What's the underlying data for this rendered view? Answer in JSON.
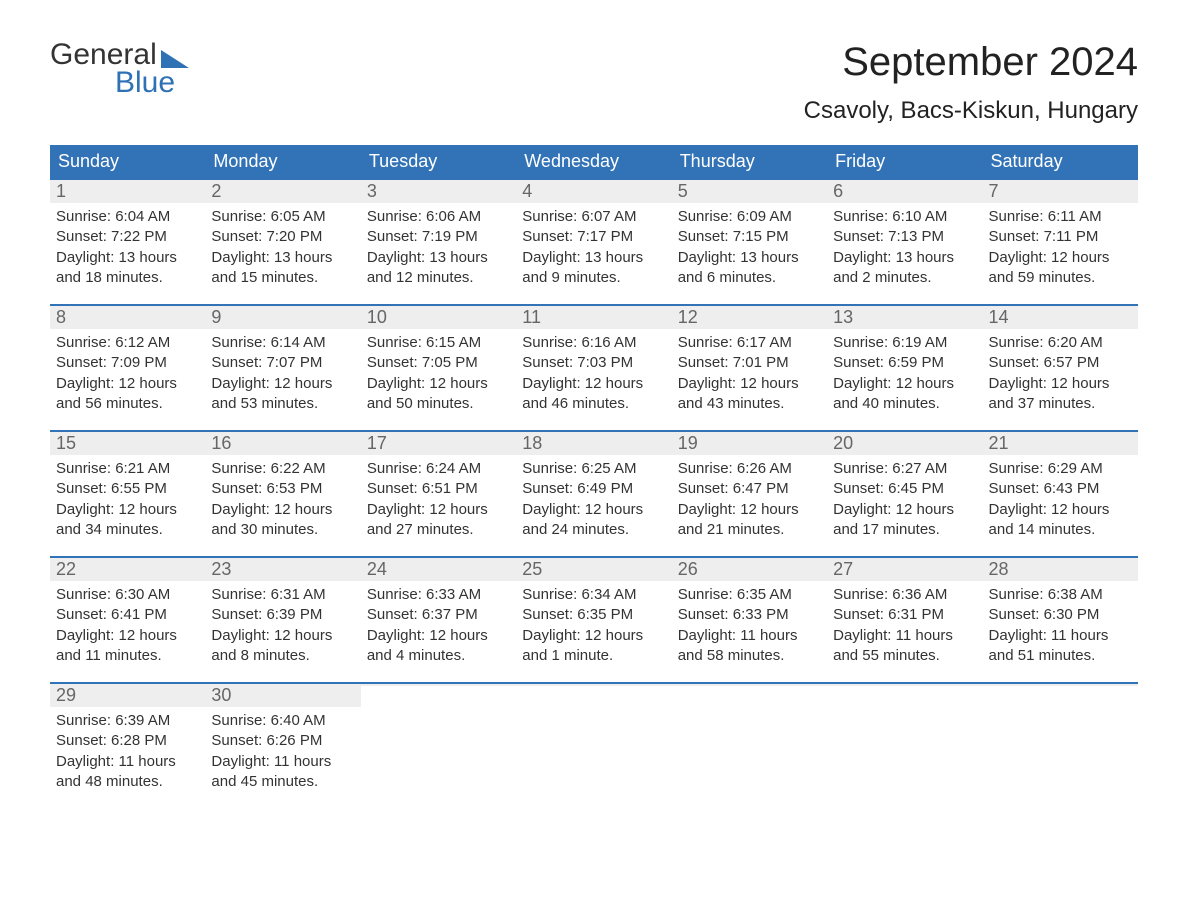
{
  "logo": {
    "text_top": "General",
    "text_bottom": "Blue"
  },
  "title": "September 2024",
  "location": "Csavoly, Bacs-Kiskun, Hungary",
  "colors": {
    "header_bg": "#3273b7",
    "header_text": "#ffffff",
    "daynum_bg": "#eeeeee",
    "daynum_text": "#666666",
    "body_text": "#333333",
    "page_bg": "#ffffff",
    "accent": "#2f71b5"
  },
  "typography": {
    "title_fontsize": 40,
    "location_fontsize": 24,
    "weekday_fontsize": 18,
    "daynum_fontsize": 18,
    "body_fontsize": 15
  },
  "weekdays": [
    "Sunday",
    "Monday",
    "Tuesday",
    "Wednesday",
    "Thursday",
    "Friday",
    "Saturday"
  ],
  "weeks": [
    [
      {
        "num": "1",
        "sunrise": "Sunrise: 6:04 AM",
        "sunset": "Sunset: 7:22 PM",
        "daylight": "Daylight: 13 hours and 18 minutes."
      },
      {
        "num": "2",
        "sunrise": "Sunrise: 6:05 AM",
        "sunset": "Sunset: 7:20 PM",
        "daylight": "Daylight: 13 hours and 15 minutes."
      },
      {
        "num": "3",
        "sunrise": "Sunrise: 6:06 AM",
        "sunset": "Sunset: 7:19 PM",
        "daylight": "Daylight: 13 hours and 12 minutes."
      },
      {
        "num": "4",
        "sunrise": "Sunrise: 6:07 AM",
        "sunset": "Sunset: 7:17 PM",
        "daylight": "Daylight: 13 hours and 9 minutes."
      },
      {
        "num": "5",
        "sunrise": "Sunrise: 6:09 AM",
        "sunset": "Sunset: 7:15 PM",
        "daylight": "Daylight: 13 hours and 6 minutes."
      },
      {
        "num": "6",
        "sunrise": "Sunrise: 6:10 AM",
        "sunset": "Sunset: 7:13 PM",
        "daylight": "Daylight: 13 hours and 2 minutes."
      },
      {
        "num": "7",
        "sunrise": "Sunrise: 6:11 AM",
        "sunset": "Sunset: 7:11 PM",
        "daylight": "Daylight: 12 hours and 59 minutes."
      }
    ],
    [
      {
        "num": "8",
        "sunrise": "Sunrise: 6:12 AM",
        "sunset": "Sunset: 7:09 PM",
        "daylight": "Daylight: 12 hours and 56 minutes."
      },
      {
        "num": "9",
        "sunrise": "Sunrise: 6:14 AM",
        "sunset": "Sunset: 7:07 PM",
        "daylight": "Daylight: 12 hours and 53 minutes."
      },
      {
        "num": "10",
        "sunrise": "Sunrise: 6:15 AM",
        "sunset": "Sunset: 7:05 PM",
        "daylight": "Daylight: 12 hours and 50 minutes."
      },
      {
        "num": "11",
        "sunrise": "Sunrise: 6:16 AM",
        "sunset": "Sunset: 7:03 PM",
        "daylight": "Daylight: 12 hours and 46 minutes."
      },
      {
        "num": "12",
        "sunrise": "Sunrise: 6:17 AM",
        "sunset": "Sunset: 7:01 PM",
        "daylight": "Daylight: 12 hours and 43 minutes."
      },
      {
        "num": "13",
        "sunrise": "Sunrise: 6:19 AM",
        "sunset": "Sunset: 6:59 PM",
        "daylight": "Daylight: 12 hours and 40 minutes."
      },
      {
        "num": "14",
        "sunrise": "Sunrise: 6:20 AM",
        "sunset": "Sunset: 6:57 PM",
        "daylight": "Daylight: 12 hours and 37 minutes."
      }
    ],
    [
      {
        "num": "15",
        "sunrise": "Sunrise: 6:21 AM",
        "sunset": "Sunset: 6:55 PM",
        "daylight": "Daylight: 12 hours and 34 minutes."
      },
      {
        "num": "16",
        "sunrise": "Sunrise: 6:22 AM",
        "sunset": "Sunset: 6:53 PM",
        "daylight": "Daylight: 12 hours and 30 minutes."
      },
      {
        "num": "17",
        "sunrise": "Sunrise: 6:24 AM",
        "sunset": "Sunset: 6:51 PM",
        "daylight": "Daylight: 12 hours and 27 minutes."
      },
      {
        "num": "18",
        "sunrise": "Sunrise: 6:25 AM",
        "sunset": "Sunset: 6:49 PM",
        "daylight": "Daylight: 12 hours and 24 minutes."
      },
      {
        "num": "19",
        "sunrise": "Sunrise: 6:26 AM",
        "sunset": "Sunset: 6:47 PM",
        "daylight": "Daylight: 12 hours and 21 minutes."
      },
      {
        "num": "20",
        "sunrise": "Sunrise: 6:27 AM",
        "sunset": "Sunset: 6:45 PM",
        "daylight": "Daylight: 12 hours and 17 minutes."
      },
      {
        "num": "21",
        "sunrise": "Sunrise: 6:29 AM",
        "sunset": "Sunset: 6:43 PM",
        "daylight": "Daylight: 12 hours and 14 minutes."
      }
    ],
    [
      {
        "num": "22",
        "sunrise": "Sunrise: 6:30 AM",
        "sunset": "Sunset: 6:41 PM",
        "daylight": "Daylight: 12 hours and 11 minutes."
      },
      {
        "num": "23",
        "sunrise": "Sunrise: 6:31 AM",
        "sunset": "Sunset: 6:39 PM",
        "daylight": "Daylight: 12 hours and 8 minutes."
      },
      {
        "num": "24",
        "sunrise": "Sunrise: 6:33 AM",
        "sunset": "Sunset: 6:37 PM",
        "daylight": "Daylight: 12 hours and 4 minutes."
      },
      {
        "num": "25",
        "sunrise": "Sunrise: 6:34 AM",
        "sunset": "Sunset: 6:35 PM",
        "daylight": "Daylight: 12 hours and 1 minute."
      },
      {
        "num": "26",
        "sunrise": "Sunrise: 6:35 AM",
        "sunset": "Sunset: 6:33 PM",
        "daylight": "Daylight: 11 hours and 58 minutes."
      },
      {
        "num": "27",
        "sunrise": "Sunrise: 6:36 AM",
        "sunset": "Sunset: 6:31 PM",
        "daylight": "Daylight: 11 hours and 55 minutes."
      },
      {
        "num": "28",
        "sunrise": "Sunrise: 6:38 AM",
        "sunset": "Sunset: 6:30 PM",
        "daylight": "Daylight: 11 hours and 51 minutes."
      }
    ],
    [
      {
        "num": "29",
        "sunrise": "Sunrise: 6:39 AM",
        "sunset": "Sunset: 6:28 PM",
        "daylight": "Daylight: 11 hours and 48 minutes."
      },
      {
        "num": "30",
        "sunrise": "Sunrise: 6:40 AM",
        "sunset": "Sunset: 6:26 PM",
        "daylight": "Daylight: 11 hours and 45 minutes."
      },
      {
        "num": "",
        "sunrise": "",
        "sunset": "",
        "daylight": ""
      },
      {
        "num": "",
        "sunrise": "",
        "sunset": "",
        "daylight": ""
      },
      {
        "num": "",
        "sunrise": "",
        "sunset": "",
        "daylight": ""
      },
      {
        "num": "",
        "sunrise": "",
        "sunset": "",
        "daylight": ""
      },
      {
        "num": "",
        "sunrise": "",
        "sunset": "",
        "daylight": ""
      }
    ]
  ]
}
